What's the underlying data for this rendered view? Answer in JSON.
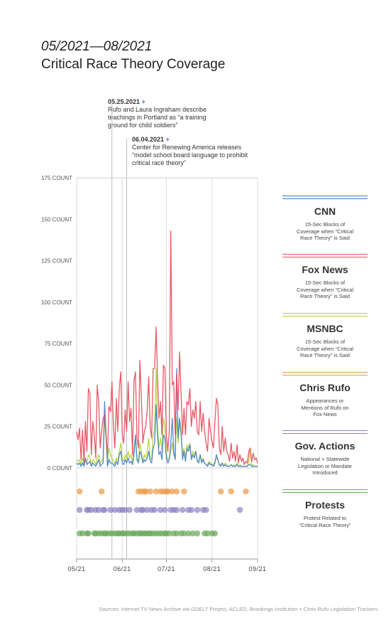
{
  "header": {
    "period": "05/2021—08/2021",
    "title": "Critical Race Theory Coverage"
  },
  "annotations": [
    {
      "date": "05.25.2021",
      "marker": "+",
      "text": [
        "Rufo and Laura Ingraham describe",
        "teachings in Portland as “a training",
        "ground for child soldiers”"
      ]
    },
    {
      "date": "06.04.2021",
      "marker": "+",
      "text": [
        "Center for Renewing America releases",
        "“model school board language to prohibit",
        "critical race theory”"
      ]
    }
  ],
  "legend": [
    {
      "name": "CNN",
      "color": "#3d7dc8",
      "desc": [
        "15-Sec Blocks of",
        "Coverage when “Critical",
        "Race Theory” is Said"
      ]
    },
    {
      "name": "Fox News",
      "color": "#e5505e",
      "desc": [
        "15-Sec Blocks of",
        "Coverage when “Critical",
        "Race Theory” is Said"
      ]
    },
    {
      "name": "MSNBC",
      "color": "#b7cf3a",
      "desc": [
        "15-Sec Blocks of",
        "Coverage when “Critical",
        "Race Theory” is Said"
      ]
    },
    {
      "name": "Chris Rufo",
      "color": "#e99a4a",
      "desc": [
        "Appearances or",
        "Mentions of Rufo on",
        "Fox News"
      ]
    },
    {
      "name": "Gov. Actions",
      "color": "#8f82c4",
      "desc": [
        "National + Statewide",
        "Legislation or Mandate",
        "Introduced"
      ]
    },
    {
      "name": "Protests",
      "color": "#6aab5b",
      "desc": [
        "Protest Related to",
        "“Critical Race Theory”"
      ]
    }
  ],
  "source": "Sources: Internet TV News Archive via GDELT Project, ACLED, Brookings Institution + Chris Rufo Legislation Trackers",
  "chart_data": {
    "type": "line",
    "ylim": [
      0,
      175
    ],
    "yticks": [
      0,
      25,
      50,
      75,
      100,
      125,
      150,
      175
    ],
    "ytick_suffix": " COUNT",
    "xlim": [
      "2021-05-01",
      "2021-09-01"
    ],
    "xticks": [
      {
        "date": "2021-05-01",
        "label": "05/21"
      },
      {
        "date": "2021-06-01",
        "label": "06/21"
      },
      {
        "date": "2021-07-01",
        "label": "07/21"
      },
      {
        "date": "2021-08-01",
        "label": "08/21"
      },
      {
        "date": "2021-09-01",
        "label": "09/21"
      }
    ],
    "start_date": "2021-05-01",
    "grid": "vertical",
    "event_lines": [
      "2021-05-25",
      "2021-06-04"
    ],
    "series": [
      {
        "name": "Fox News",
        "color": "#e5505e",
        "values": [
          22,
          17,
          24,
          5,
          23,
          3,
          28,
          10,
          48,
          45,
          8,
          28,
          20,
          6,
          50,
          40,
          12,
          22,
          30,
          32,
          18,
          8,
          37,
          34,
          52,
          26,
          12,
          42,
          22,
          48,
          58,
          20,
          15,
          35,
          22,
          52,
          28,
          36,
          8,
          53,
          58,
          18,
          12,
          65,
          43,
          15,
          22,
          25,
          35,
          55,
          24,
          18,
          60,
          60,
          85,
          55,
          30,
          40,
          20,
          62,
          60,
          20,
          10,
          23,
          143,
          50,
          52,
          20,
          57,
          35,
          70,
          45,
          20,
          36,
          20,
          40,
          38,
          48,
          25,
          35,
          30,
          40,
          22,
          20,
          40,
          22,
          33,
          22,
          15,
          10,
          30,
          22,
          16,
          12,
          28,
          42,
          38,
          12,
          8,
          25,
          10,
          18,
          10,
          8,
          4,
          15,
          6,
          10,
          4,
          14,
          3,
          8,
          4,
          6,
          2,
          4,
          3,
          10,
          12,
          4,
          9,
          5,
          6,
          3
        ]
      },
      {
        "name": "CNN",
        "color": "#3d7dc8",
        "values": [
          3,
          2,
          3,
          1,
          3,
          1,
          6,
          2,
          3,
          4,
          1,
          3,
          2,
          1,
          3,
          5,
          1,
          2,
          3,
          40,
          20,
          1,
          5,
          3,
          3,
          2,
          1,
          4,
          2,
          8,
          10,
          3,
          2,
          5,
          3,
          6,
          3,
          4,
          2,
          8,
          20,
          5,
          3,
          10,
          8,
          3,
          5,
          4,
          6,
          10,
          4,
          3,
          12,
          15,
          38,
          20,
          8,
          10,
          5,
          20,
          18,
          6,
          3,
          5,
          15,
          30,
          10,
          5,
          60,
          18,
          30,
          22,
          5,
          10,
          4,
          12,
          10,
          14,
          5,
          8,
          6,
          10,
          4,
          3,
          8,
          3,
          5,
          3,
          2,
          1,
          3,
          2,
          2,
          1,
          3,
          8,
          5,
          2,
          1,
          3,
          1,
          2,
          1,
          1,
          1,
          2,
          1,
          1,
          1,
          2,
          1,
          1,
          1,
          1,
          1,
          1,
          1,
          2,
          2,
          1,
          1,
          1,
          1,
          1
        ]
      },
      {
        "name": "MSNBC",
        "color": "#b7cf3a",
        "values": [
          5,
          4,
          5,
          2,
          6,
          2,
          5,
          3,
          8,
          6,
          2,
          5,
          4,
          2,
          6,
          8,
          3,
          4,
          6,
          30,
          18,
          3,
          12,
          8,
          6,
          4,
          2,
          6,
          4,
          10,
          15,
          5,
          4,
          8,
          5,
          10,
          6,
          8,
          3,
          12,
          18,
          6,
          4,
          15,
          10,
          4,
          8,
          6,
          10,
          18,
          6,
          5,
          20,
          22,
          60,
          25,
          12,
          18,
          10,
          30,
          25,
          8,
          5,
          6,
          10,
          15,
          8,
          6,
          30,
          15,
          28,
          20,
          8,
          12,
          6,
          14,
          12,
          15,
          6,
          10,
          8,
          10,
          5,
          4,
          8,
          4,
          6,
          3,
          2,
          2,
          4,
          3,
          2,
          2,
          4,
          6,
          5,
          2,
          2,
          3,
          1,
          3,
          2,
          1,
          1,
          2,
          1,
          2,
          1,
          3,
          1,
          2,
          1,
          1,
          1,
          1,
          1,
          4,
          12,
          1,
          2,
          1,
          1,
          1
        ]
      },
      {
        "name": "Chris Rufo",
        "color": "#e99a4a",
        "dates": [
          "2021-05-03",
          "2021-05-18",
          "2021-06-12",
          "2021-06-14",
          "2021-06-16",
          "2021-06-17",
          "2021-06-20",
          "2021-06-24",
          "2021-06-27",
          "2021-06-29",
          "2021-07-01",
          "2021-07-02",
          "2021-07-05",
          "2021-07-08",
          "2021-07-13",
          "2021-08-07",
          "2021-08-14",
          "2021-08-24"
        ]
      },
      {
        "name": "Gov. Actions",
        "color": "#8f82c4",
        "dates": [
          "2021-05-03",
          "2021-05-08",
          "2021-05-09",
          "2021-05-11",
          "2021-05-14",
          "2021-05-16",
          "2021-05-19",
          "2021-05-20",
          "2021-05-24",
          "2021-05-27",
          "2021-05-30",
          "2021-06-01",
          "2021-06-03",
          "2021-06-06",
          "2021-06-11",
          "2021-06-14",
          "2021-06-15",
          "2021-06-18",
          "2021-06-21",
          "2021-06-23",
          "2021-06-27",
          "2021-06-30",
          "2021-07-04",
          "2021-07-06",
          "2021-07-08",
          "2021-07-12",
          "2021-07-16",
          "2021-07-18",
          "2021-07-22",
          "2021-07-26",
          "2021-07-28",
          "2021-08-20"
        ]
      },
      {
        "name": "Protests",
        "color": "#6aab5b",
        "dates": [
          "2021-05-03",
          "2021-05-05",
          "2021-05-08",
          "2021-05-09",
          "2021-05-13",
          "2021-05-14",
          "2021-05-16",
          "2021-05-18",
          "2021-05-20",
          "2021-05-21",
          "2021-05-23",
          "2021-05-25",
          "2021-05-27",
          "2021-05-29",
          "2021-05-30",
          "2021-06-01",
          "2021-06-02",
          "2021-06-04",
          "2021-06-06",
          "2021-06-08",
          "2021-06-09",
          "2021-06-11",
          "2021-06-13",
          "2021-06-14",
          "2021-06-16",
          "2021-06-17",
          "2021-06-19",
          "2021-06-20",
          "2021-06-22",
          "2021-06-24",
          "2021-06-26",
          "2021-06-28",
          "2021-06-30",
          "2021-07-01",
          "2021-07-03",
          "2021-07-06",
          "2021-07-08",
          "2021-07-11",
          "2021-07-13",
          "2021-07-16",
          "2021-07-19",
          "2021-07-22",
          "2021-07-27",
          "2021-07-29",
          "2021-08-01",
          "2021-08-03"
        ]
      }
    ]
  }
}
